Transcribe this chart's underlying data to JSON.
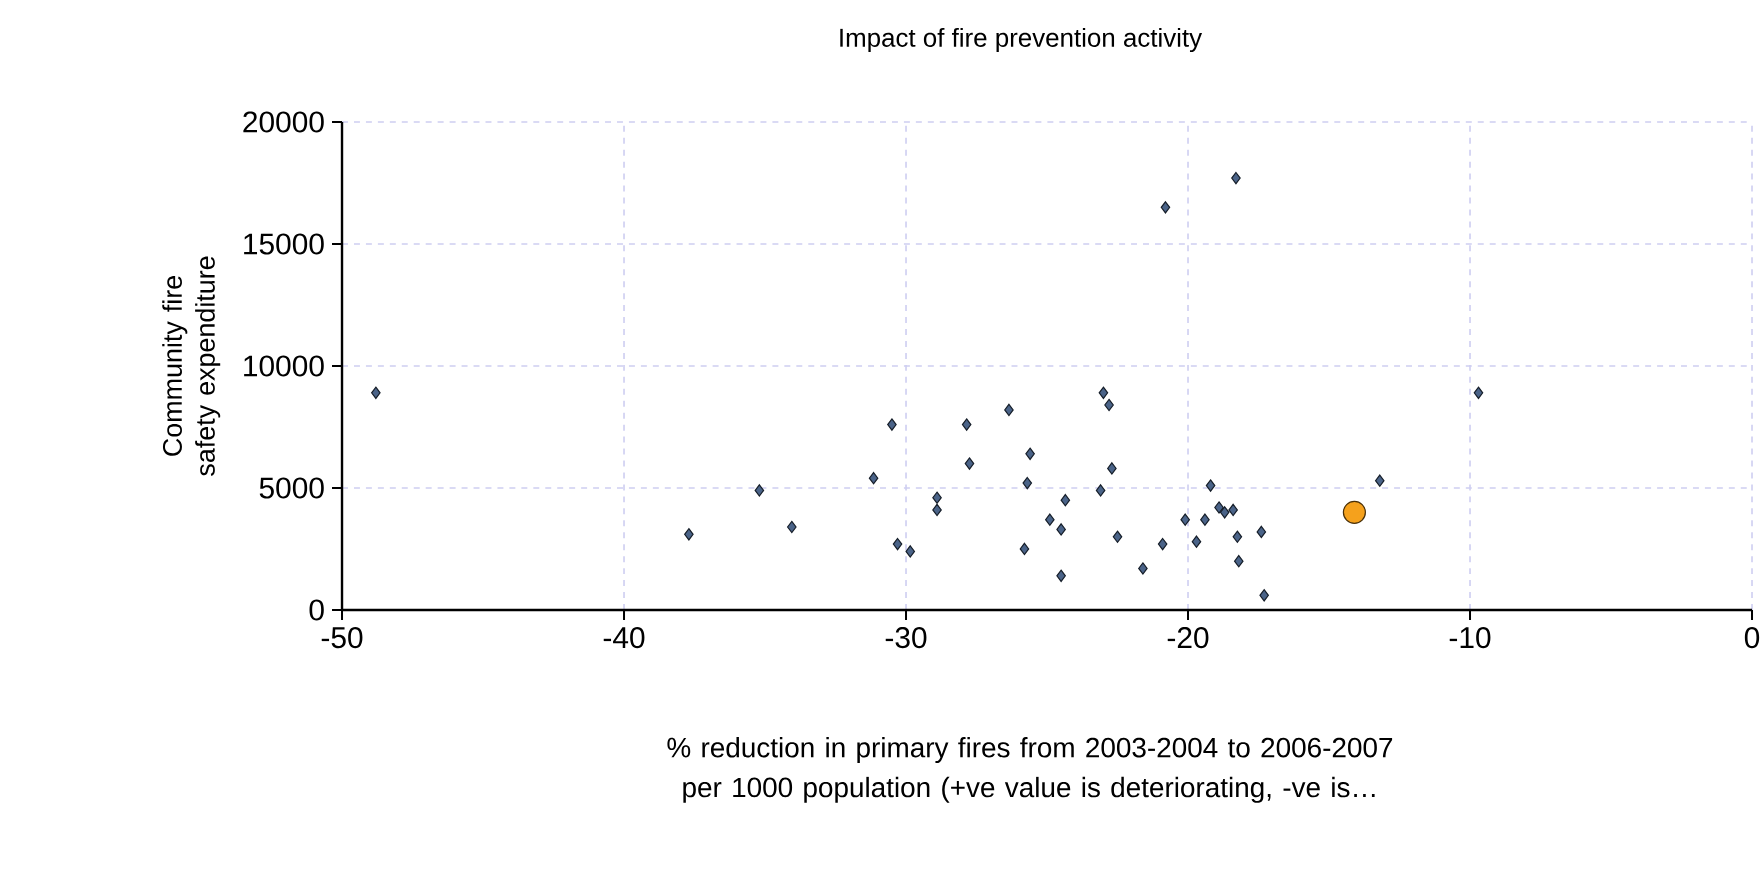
{
  "chart_data": {
    "type": "scatter",
    "title": "Impact of fire prevention activity",
    "xlabel": "% reduction in primary fires from 2003-2004 to 2006-2007 per 1000 population (+ve value is deteriorating, -ve is…",
    "ylabel": "Community fire safety expenditure",
    "series": [
      {
        "color": "#4a6388",
        "marker": "diamond",
        "x": [
          -48.8,
          -37.7,
          -35.2,
          -34.05,
          -31.15,
          -30.5,
          -30.3,
          -29.85,
          -28.9,
          -28.9,
          -27.85,
          -27.75,
          -26.35,
          -25.6,
          -25.7,
          -25.8,
          -24.35,
          -24.9,
          -24.5,
          -24.5,
          -23.0,
          -22.8,
          -22.7,
          -23.1,
          -22.5,
          -21.6,
          -20.9,
          -20.8,
          -20.1,
          -19.7,
          -19.2,
          -19.4,
          -18.9,
          -18.7,
          -18.4,
          -18.3,
          -18.25,
          -18.2,
          -17.4,
          -17.3,
          -13.2,
          -9.7
        ],
        "values": [
          8900,
          3100,
          4900,
          3400,
          5400,
          7600,
          2700,
          2400,
          4600,
          4100,
          7600,
          6000,
          8200,
          6400,
          5200,
          2500,
          4500,
          3700,
          3300,
          1400,
          8900,
          8400,
          5800,
          4900,
          3000,
          1700,
          2700,
          16500,
          3700,
          2800,
          5100,
          3700,
          4200,
          4000,
          4100,
          17700,
          3000,
          2000,
          3200,
          600,
          5300,
          8900
        ]
      },
      {
        "color": "#f5a11c",
        "marker": "circle",
        "x": [
          -14.1
        ],
        "values": [
          4000
        ]
      }
    ],
    "xlim": [
      -50,
      0
    ],
    "ylim": [
      0,
      20000
    ],
    "xticks": [
      -50,
      -40,
      -30,
      -20,
      -10,
      0
    ],
    "yticks": [
      0,
      5000,
      10000,
      15000,
      20000
    ],
    "grid": true
  }
}
